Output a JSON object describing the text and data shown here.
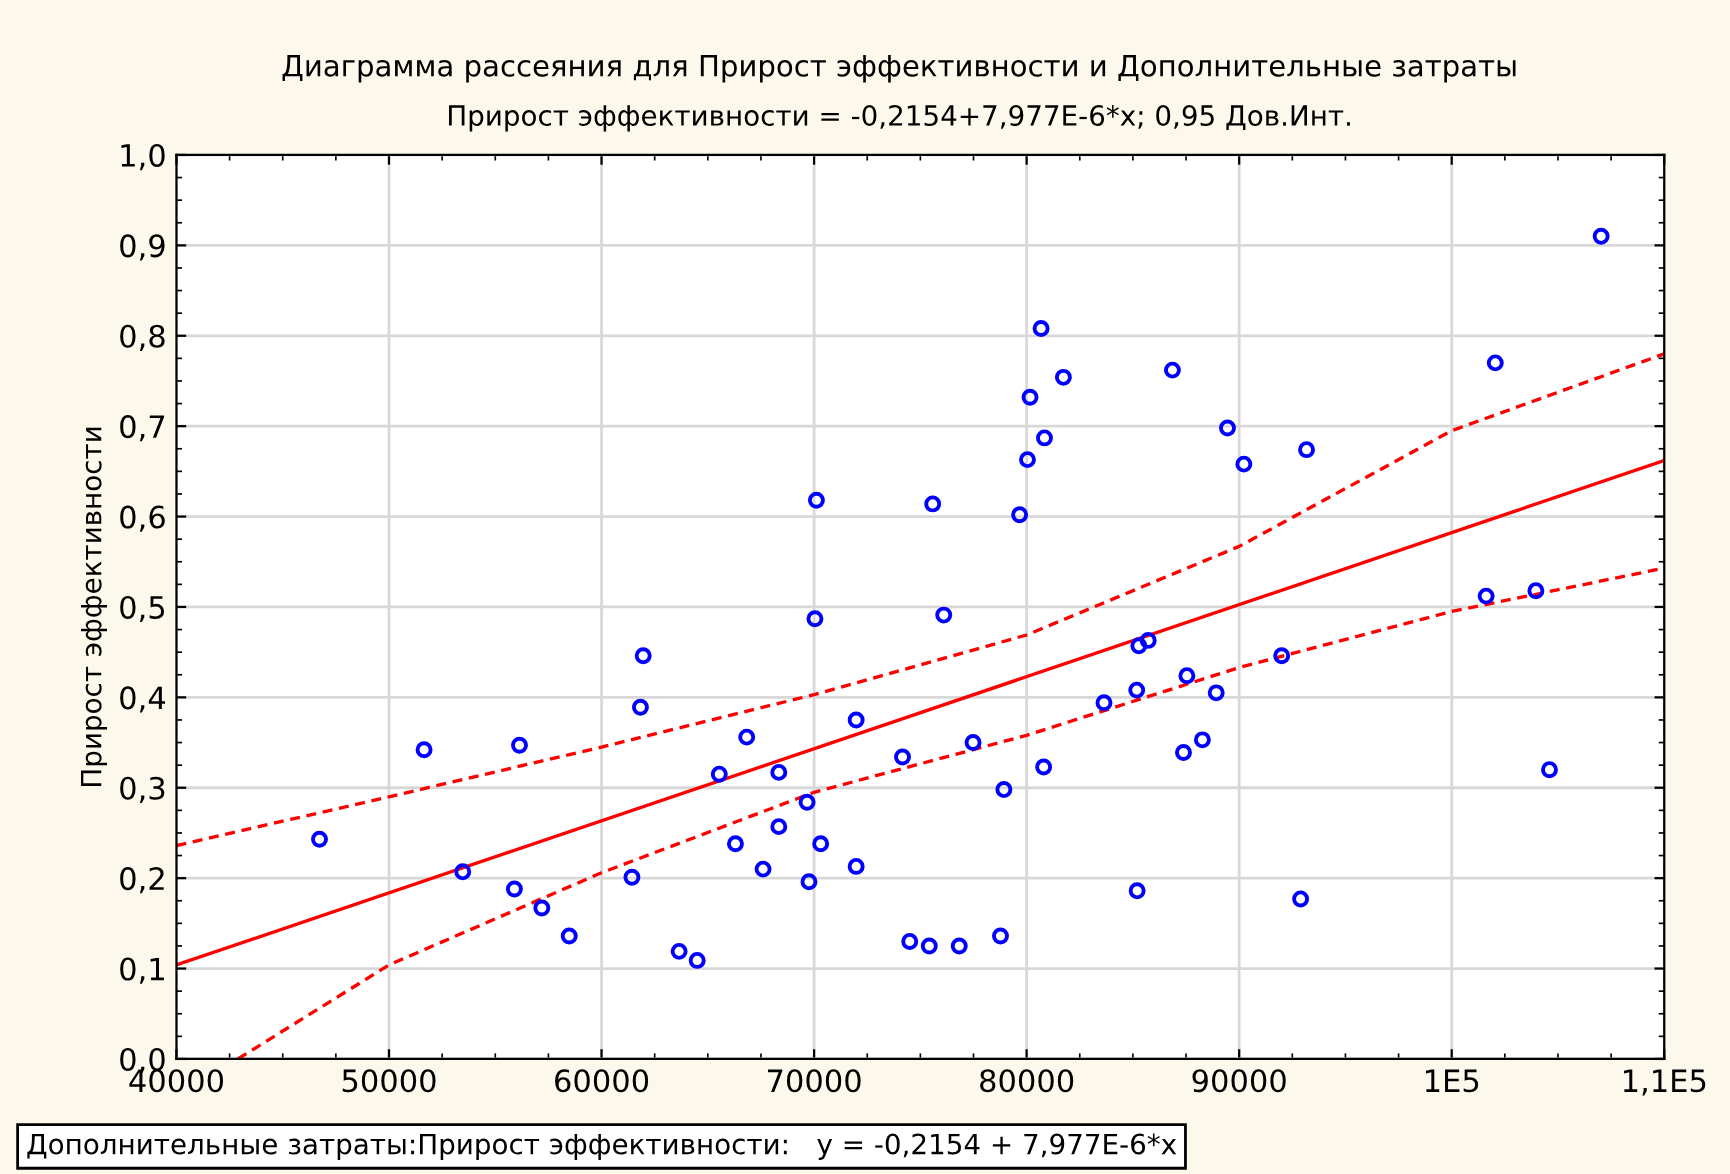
{
  "chart_data": {
    "type": "scatter",
    "title": "Диаграмма рассеяния для Прирост эффективности и Дополнительные затраты",
    "subtitle": "Прирост эффективности = -0,2154+7,977E-6*x; 0,95 Дов.Инт.",
    "ylabel": "Прирост эффективности",
    "annotations": [
      "Дополнительные затраты:Прирост эффективности:   y = -0,2154 + 7,977E-6*x"
    ],
    "xlim": [
      40000,
      110000
    ],
    "xticks": [
      40000,
      50000,
      60000,
      70000,
      80000,
      90000,
      {
        "value": 100000,
        "label": "1E5"
      },
      {
        "value": 110000,
        "label": "1,1E5"
      }
    ],
    "ylim": [
      0,
      1
    ],
    "yticks": [
      {
        "value": 0,
        "label": "0,0"
      },
      {
        "value": 0.1,
        "label": "0,1"
      },
      {
        "value": 0.2,
        "label": "0,2"
      },
      {
        "value": 0.3,
        "label": "0,3"
      },
      {
        "value": 0.4,
        "label": "0,4"
      },
      {
        "value": 0.5,
        "label": "0,5"
      },
      {
        "value": 0.6,
        "label": "0,6"
      },
      {
        "value": 0.7,
        "label": "0,7"
      },
      {
        "value": 0.8,
        "label": "0,8"
      },
      {
        "value": 0.9,
        "label": "0,9"
      },
      {
        "value": 1,
        "label": "1,0"
      }
    ],
    "grid": true,
    "legend": false,
    "series": [
      {
        "color": "#0000ff",
        "marker": "circle",
        "x": [
          46730,
          51650,
          53470,
          56140,
          55900,
          57190,
          58480,
          61960,
          61830,
          61430,
          63650,
          64500,
          65540,
          66830,
          66300,
          68340,
          68340,
          67600,
          69670,
          70040,
          70310,
          69760,
          71980,
          71980,
          74160,
          74500,
          70110,
          75580,
          76100,
          80680,
          81730,
          80160,
          80840,
          80040,
          79670,
          86860,
          89450,
          90220,
          93170,
          102050,
          107030,
          101620,
          103960,
          85720,
          85280,
          77480,
          78930,
          80800,
          75420,
          76830,
          78770,
          83640,
          85180,
          87540,
          88920,
          87380,
          88270,
          92000,
          85200,
          92890,
          104600
        ],
        "values": [
          0.243,
          0.342,
          0.207,
          0.347,
          0.188,
          0.167,
          0.136,
          0.446,
          0.389,
          0.201,
          0.119,
          0.109,
          0.315,
          0.356,
          0.238,
          0.317,
          0.257,
          0.21,
          0.284,
          0.487,
          0.238,
          0.196,
          0.375,
          0.213,
          0.334,
          0.13,
          0.618,
          0.614,
          0.491,
          0.808,
          0.754,
          0.732,
          0.687,
          0.663,
          0.602,
          0.762,
          0.698,
          0.658,
          0.674,
          0.77,
          0.91,
          0.512,
          0.518,
          0.463,
          0.457,
          0.35,
          0.298,
          0.323,
          0.125,
          0.125,
          0.136,
          0.394,
          0.408,
          0.424,
          0.405,
          0.339,
          0.353,
          0.446,
          0.186,
          0.177,
          0.32
        ]
      },
      {
        "type": "line",
        "color": "#ff0000",
        "line_style": "solid",
        "x": [
          40000,
          110000
        ],
        "values": [
          0.104,
          0.662
        ]
      },
      {
        "type": "line",
        "color": "#ff0000",
        "line_style": "dashed",
        "x": [
          40000,
          50000,
          60000,
          70000,
          80000,
          90000,
          100000,
          110000
        ],
        "values": [
          0.236,
          0.29,
          0.345,
          0.403,
          0.469,
          0.567,
          0.695,
          0.78
        ]
      },
      {
        "type": "line",
        "color": "#ff0000",
        "line_style": "dashed",
        "x": [
          42890,
          50000,
          60000,
          70000,
          80000,
          90000,
          100000,
          110000
        ],
        "values": [
          0.0,
          0.104,
          0.206,
          0.295,
          0.358,
          0.433,
          0.495,
          0.543
        ]
      }
    ]
  }
}
